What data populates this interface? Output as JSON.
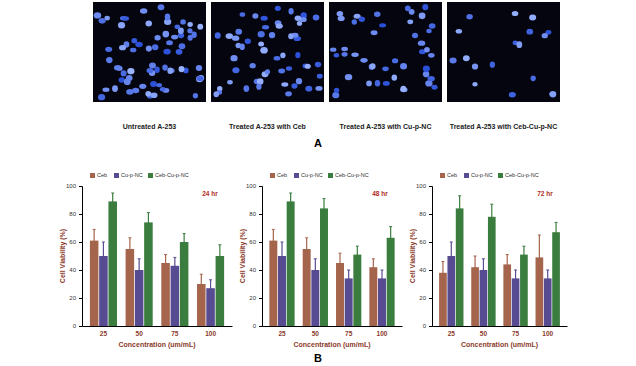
{
  "figure": {
    "panel_a": {
      "label": "A",
      "captions": [
        "Untreated A-253",
        "Treated A-253 with Ceb",
        "Treated A-253 with Cu-p-NC",
        "Treated A-253 with Ceb-Cu-p-NC"
      ]
    },
    "panel_b": {
      "label": "B"
    }
  },
  "chart_data": [
    {
      "type": "bar",
      "title": "24 hr",
      "x_label": "Concentration (um/mL)",
      "y_label": "Cell Viability (%)",
      "categories": [
        "25",
        "50",
        "75",
        "100"
      ],
      "series": [
        {
          "name": "Ceb",
          "color": "#a5654c",
          "values": [
            61,
            55,
            45,
            30
          ],
          "errors": [
            8,
            8,
            6,
            7
          ]
        },
        {
          "name": "Cu-p-NC",
          "color": "#574b92",
          "values": [
            50,
            40,
            43,
            27
          ],
          "errors": [
            10,
            8,
            6,
            6
          ]
        },
        {
          "name": "Ceb-Cu-p-NC",
          "color": "#3b7d3e",
          "values": [
            89,
            74,
            60,
            50
          ],
          "errors": [
            6,
            7,
            6,
            8
          ]
        }
      ],
      "ylim": [
        0,
        100
      ],
      "yticks": [
        0,
        20,
        40,
        60,
        80,
        100
      ],
      "legend": "top-left",
      "grid": false
    },
    {
      "type": "bar",
      "title": "48 hr",
      "x_label": "Concentration (um/mL)",
      "y_label": "Cell Viability (%)",
      "categories": [
        "25",
        "50",
        "75",
        "100"
      ],
      "series": [
        {
          "name": "Ceb",
          "color": "#a5654c",
          "values": [
            61,
            55,
            45,
            42
          ],
          "errors": [
            8,
            8,
            7,
            6
          ]
        },
        {
          "name": "Cu-p-NC",
          "color": "#574b92",
          "values": [
            50,
            40,
            34,
            34
          ],
          "errors": [
            10,
            8,
            6,
            6
          ]
        },
        {
          "name": "Ceb-Cu-p-NC",
          "color": "#3b7d3e",
          "values": [
            89,
            84,
            51,
            63
          ],
          "errors": [
            6,
            7,
            6,
            8
          ]
        }
      ],
      "ylim": [
        0,
        100
      ],
      "yticks": [
        0,
        20,
        40,
        60,
        80,
        100
      ],
      "legend": "top-left",
      "grid": false
    },
    {
      "type": "bar",
      "title": "72 hr",
      "x_label": "Concentration (um/mL)",
      "y_label": "Cell Viability (%)",
      "categories": [
        "25",
        "50",
        "75",
        "100"
      ],
      "series": [
        {
          "name": "Ceb",
          "color": "#a5654c",
          "values": [
            38,
            42,
            44,
            49
          ],
          "errors": [
            8,
            8,
            7,
            16
          ]
        },
        {
          "name": "Cu-p-NC",
          "color": "#574b92",
          "values": [
            50,
            40,
            34,
            34
          ],
          "errors": [
            10,
            8,
            6,
            6
          ]
        },
        {
          "name": "Ceb-Cu-p-NC",
          "color": "#3b7d3e",
          "values": [
            84,
            78,
            51,
            67
          ],
          "errors": [
            9,
            9,
            6,
            7
          ]
        }
      ],
      "ylim": [
        0,
        100
      ],
      "yticks": [
        0,
        20,
        40,
        60,
        80,
        100
      ],
      "legend": "top-left",
      "grid": false
    }
  ]
}
